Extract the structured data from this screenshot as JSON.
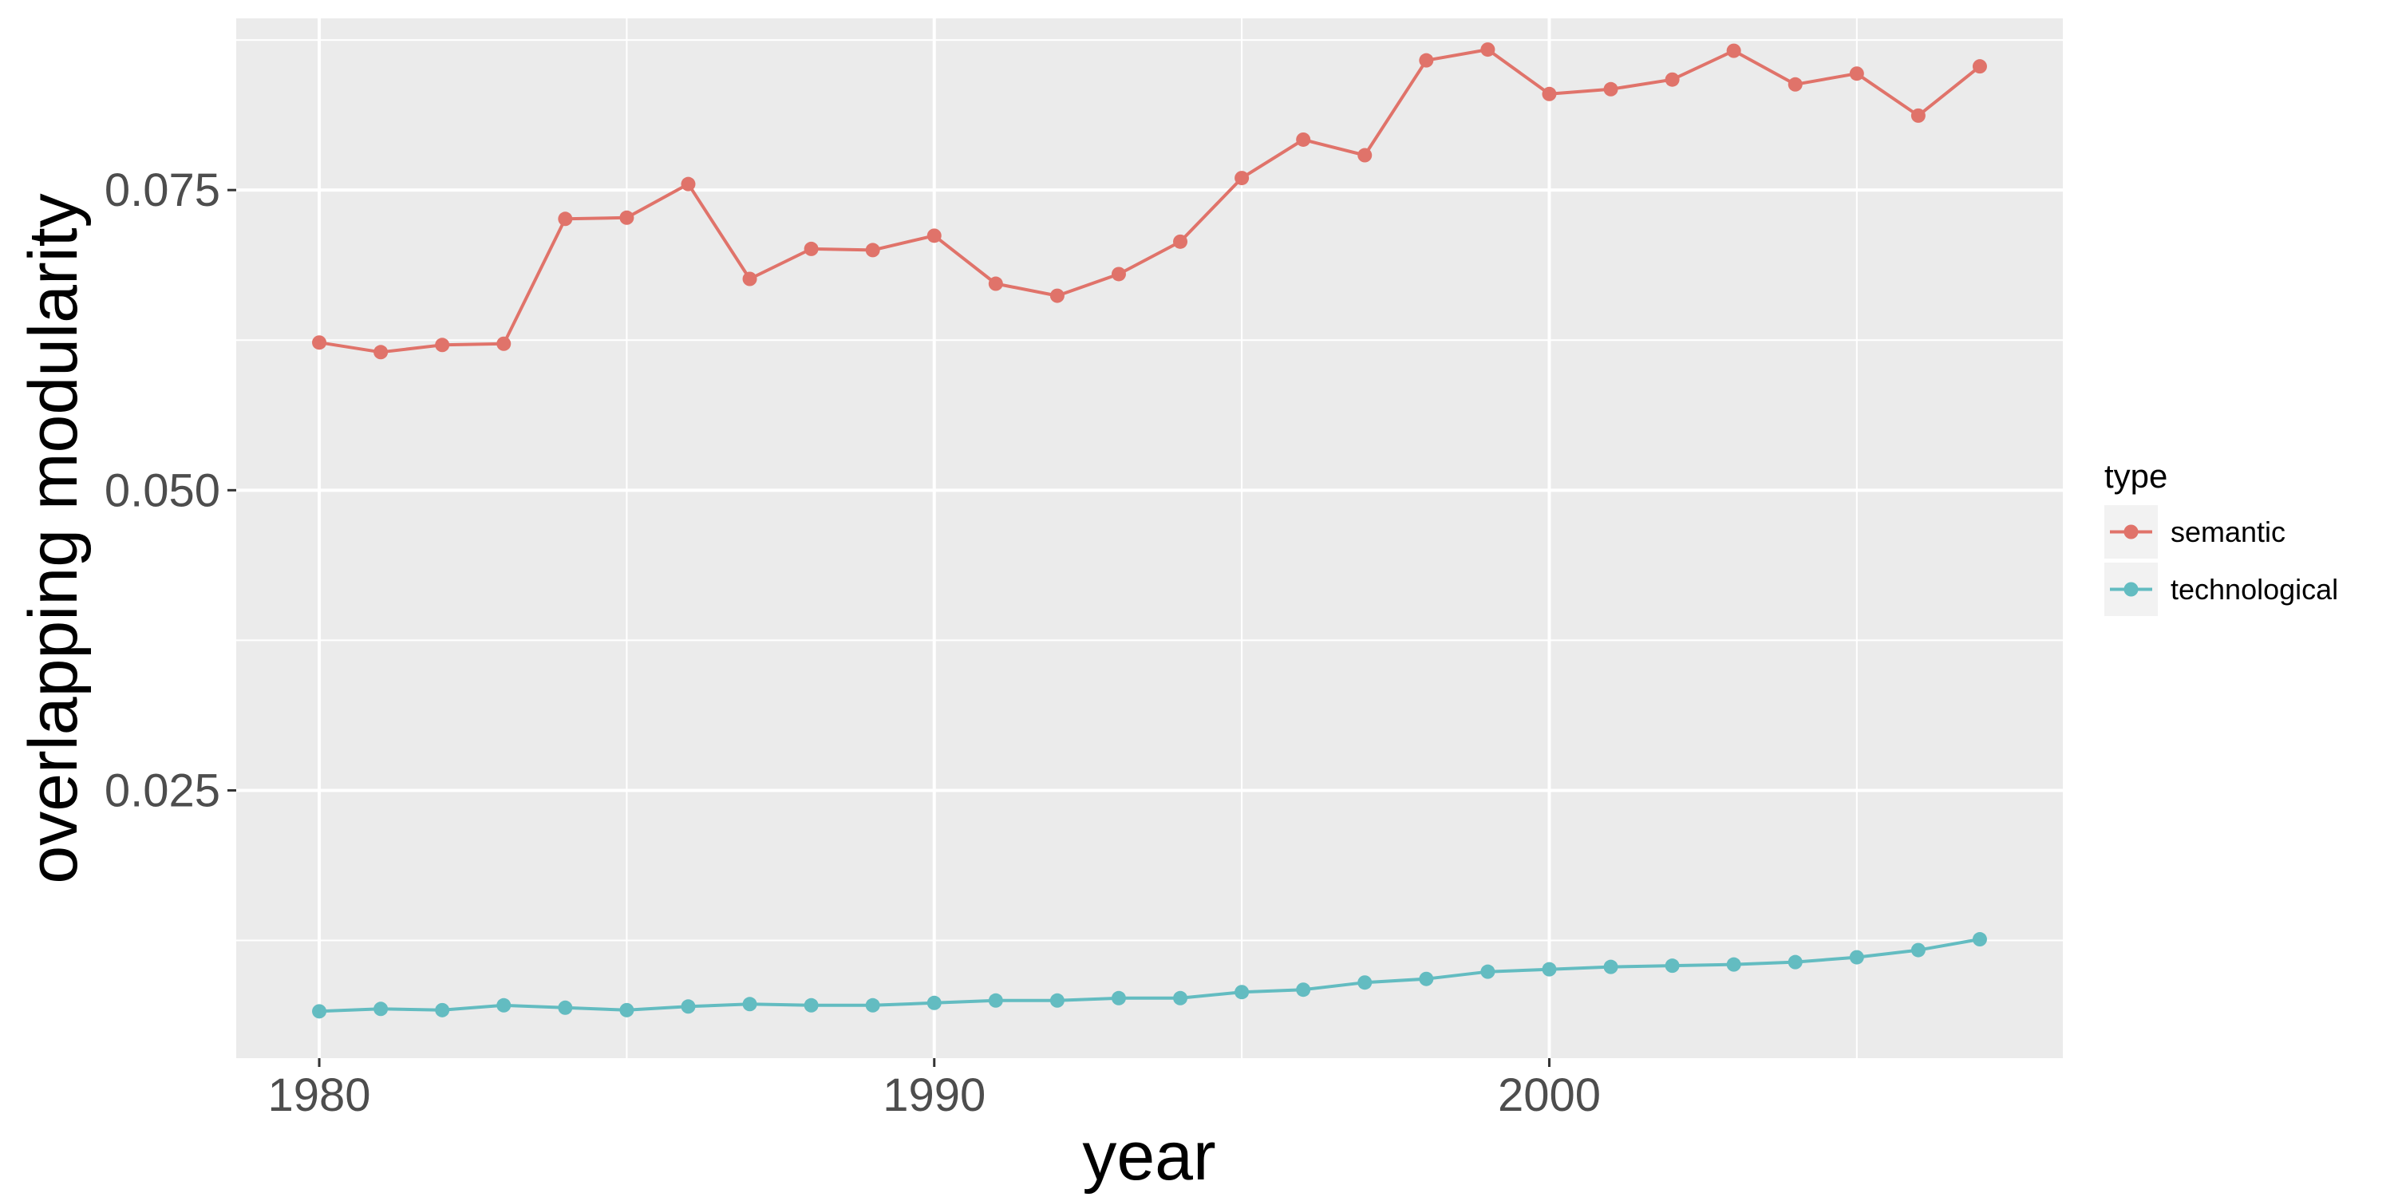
{
  "chart_data": {
    "type": "line",
    "title": "",
    "xlabel": "year",
    "ylabel": "overlapping modularity",
    "xlim": [
      1978.65,
      2008.35
    ],
    "ylim": [
      0.0027,
      0.0893
    ],
    "x_ticks": [
      1980,
      1990,
      2000
    ],
    "y_ticks": [
      0.025,
      0.05,
      0.075
    ],
    "x_tick_labels": [
      "1980",
      "1990",
      "2000"
    ],
    "y_tick_labels": [
      "0.025",
      "0.050",
      "0.075"
    ],
    "grid": true,
    "legend": {
      "title": "type",
      "position": "right"
    },
    "x": [
      1980,
      1981,
      1982,
      1983,
      1984,
      1985,
      1986,
      1987,
      1988,
      1989,
      1990,
      1991,
      1992,
      1993,
      1994,
      1995,
      1996,
      1997,
      1998,
      1999,
      2000,
      2001,
      2002,
      2003,
      2004,
      2005,
      2006,
      2007
    ],
    "series": [
      {
        "name": "semantic",
        "color": "#E0736A",
        "values": [
          0.0623,
          0.0615,
          0.0621,
          0.0622,
          0.0726,
          0.0727,
          0.0755,
          0.0676,
          0.0701,
          0.07,
          0.0712,
          0.0672,
          0.0662,
          0.068,
          0.0707,
          0.076,
          0.0792,
          0.0779,
          0.0858,
          0.0867,
          0.083,
          0.0834,
          0.0842,
          0.0866,
          0.0838,
          0.0847,
          0.0812,
          0.0853
        ]
      },
      {
        "name": "technological",
        "color": "#63BCC1",
        "values": [
          0.0066,
          0.0068,
          0.0067,
          0.0071,
          0.0069,
          0.0067,
          0.007,
          0.0072,
          0.0071,
          0.0071,
          0.0073,
          0.0075,
          0.0075,
          0.0077,
          0.0077,
          0.0082,
          0.0084,
          0.009,
          0.0093,
          0.0099,
          0.0101,
          0.0103,
          0.0104,
          0.0105,
          0.0107,
          0.0111,
          0.0117,
          0.0126
        ]
      }
    ]
  }
}
